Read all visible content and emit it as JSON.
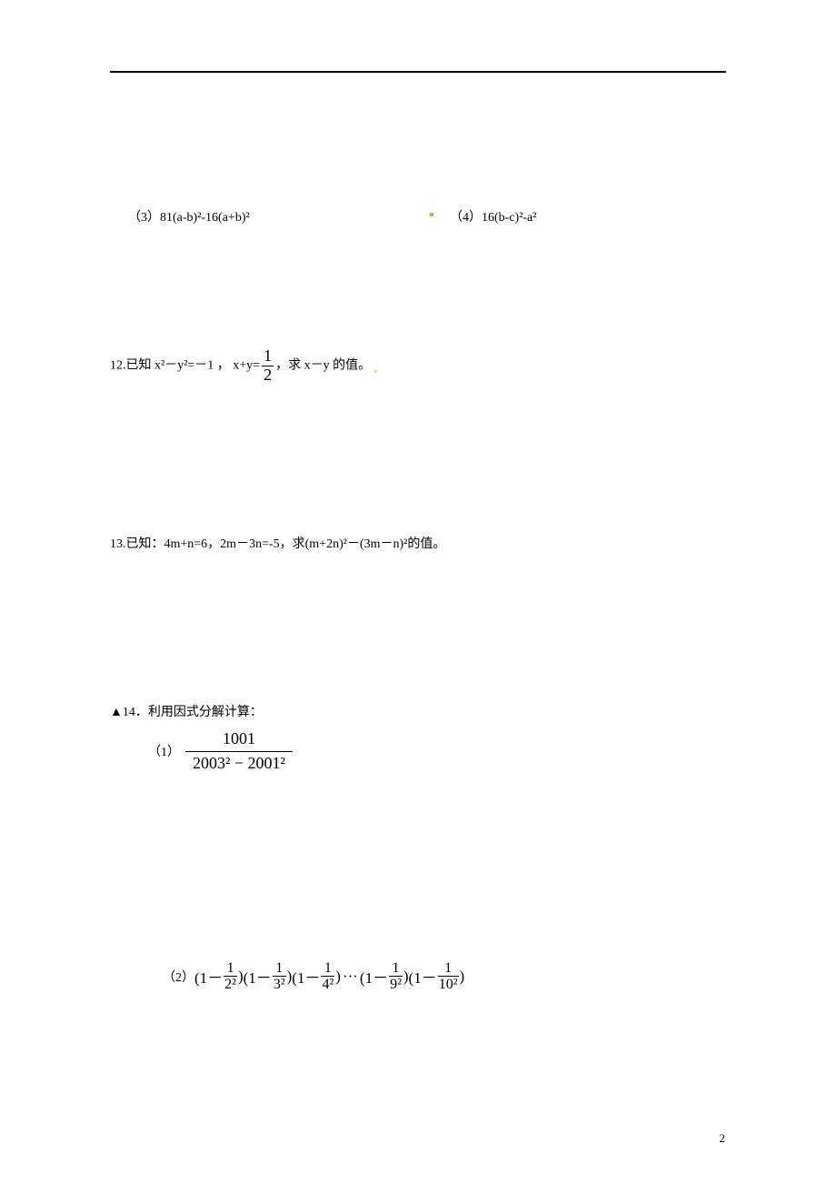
{
  "q3": "（3）81(a-b)²-16(a+b)²",
  "q4": "（4）16(b-c)²-a²",
  "q12": {
    "prefix": "12.已知 x²－y²=－1 ，  x+y=",
    "frac": {
      "num": "1",
      "den": "2"
    },
    "suffix": "，求 x－y 的值。",
    "mark": "。"
  },
  "q13": "13.已知：4m+n=6，2m－3n=-5，求(m+2n)²－(3m－n)²的值。",
  "q14": {
    "title": "▲14．利用因式分解计算：",
    "sub1": {
      "label": "（1）",
      "num": "1001",
      "den": "2003² − 2001²"
    },
    "sub2": {
      "label": "（2）",
      "terms": [
        {
          "pre": "(1－",
          "num": "1",
          "den": "2²",
          "post": ")"
        },
        {
          "pre": "(1－",
          "num": "1",
          "den": "3²",
          "post": ")"
        },
        {
          "pre": "(1－",
          "num": "1",
          "den": "4²",
          "post": ")"
        },
        {
          "ellipsis": "···"
        },
        {
          "pre": "(1－",
          "num": "1",
          "den": "9²",
          "post": ")"
        },
        {
          "pre": "(1－",
          "num": "1",
          "den": "10²",
          "post": ")"
        }
      ]
    }
  },
  "page_number": "2"
}
